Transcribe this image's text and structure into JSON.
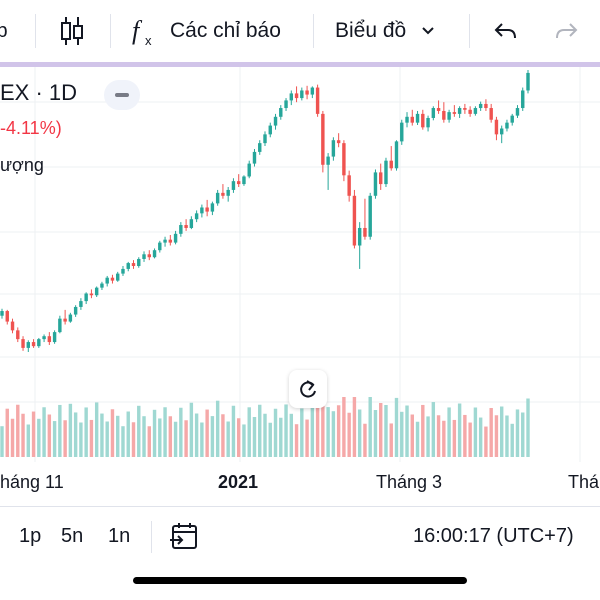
{
  "toolbar": {
    "indicators_label": "Các chỉ báo",
    "chart_type_label": "Biểu đồ",
    "partial_left": "b"
  },
  "legend": {
    "symbol": "EX · 1D",
    "change": "-4.11%)",
    "volume_label": "ượng"
  },
  "x_axis": {
    "labels": [
      "háng 11",
      "2021",
      "Tháng 3",
      "Thá"
    ]
  },
  "bottombar": {
    "range_1d": "1p",
    "range_5d": "5n",
    "range_1y": "1n",
    "clock": "16:00:17 (UTC+7)"
  },
  "colors": {
    "up": "#26a69a",
    "down": "#ef5350",
    "up_volume": "#9fd8d2",
    "down_volume": "#f5a8a8",
    "grid": "#eef0f3"
  },
  "chart_data": {
    "type": "candlestick",
    "title": "",
    "xlabel": "",
    "ylabel": "",
    "candles": [
      [
        1000,
        1012,
        995,
        1008
      ],
      [
        1008,
        1010,
        985,
        990
      ],
      [
        990,
        995,
        970,
        975
      ],
      [
        975,
        980,
        955,
        960
      ],
      [
        960,
        965,
        940,
        945
      ],
      [
        945,
        958,
        938,
        955
      ],
      [
        955,
        960,
        945,
        948
      ],
      [
        948,
        962,
        945,
        960
      ],
      [
        960,
        968,
        955,
        965
      ],
      [
        965,
        972,
        950,
        955
      ],
      [
        955,
        975,
        952,
        972
      ],
      [
        972,
        1000,
        970,
        995
      ],
      [
        995,
        1010,
        985,
        990
      ],
      [
        990,
        1005,
        988,
        1002
      ],
      [
        1002,
        1018,
        998,
        1015
      ],
      [
        1015,
        1030,
        1010,
        1025
      ],
      [
        1025,
        1040,
        1020,
        1038
      ],
      [
        1038,
        1045,
        1030,
        1035
      ],
      [
        1035,
        1050,
        1032,
        1048
      ],
      [
        1048,
        1058,
        1044,
        1055
      ],
      [
        1055,
        1068,
        1050,
        1065
      ],
      [
        1065,
        1070,
        1055,
        1060
      ],
      [
        1060,
        1075,
        1058,
        1072
      ],
      [
        1072,
        1085,
        1068,
        1080
      ],
      [
        1080,
        1092,
        1076,
        1090
      ],
      [
        1090,
        1095,
        1080,
        1085
      ],
      [
        1085,
        1100,
        1082,
        1097
      ],
      [
        1097,
        1110,
        1092,
        1105
      ],
      [
        1105,
        1112,
        1095,
        1100
      ],
      [
        1100,
        1115,
        1098,
        1112
      ],
      [
        1112,
        1128,
        1108,
        1125
      ],
      [
        1125,
        1135,
        1118,
        1130
      ],
      [
        1130,
        1138,
        1120,
        1125
      ],
      [
        1125,
        1145,
        1122,
        1140
      ],
      [
        1140,
        1160,
        1135,
        1155
      ],
      [
        1155,
        1165,
        1145,
        1150
      ],
      [
        1150,
        1170,
        1148,
        1165
      ],
      [
        1165,
        1180,
        1160,
        1175
      ],
      [
        1175,
        1190,
        1168,
        1185
      ],
      [
        1185,
        1198,
        1170,
        1178
      ],
      [
        1178,
        1195,
        1172,
        1192
      ],
      [
        1192,
        1215,
        1188,
        1210
      ],
      [
        1210,
        1225,
        1200,
        1205
      ],
      [
        1205,
        1220,
        1195,
        1215
      ],
      [
        1215,
        1235,
        1210,
        1230
      ],
      [
        1230,
        1242,
        1220,
        1225
      ],
      [
        1225,
        1240,
        1222,
        1238
      ],
      [
        1238,
        1265,
        1235,
        1260
      ],
      [
        1260,
        1285,
        1255,
        1280
      ],
      [
        1280,
        1300,
        1275,
        1295
      ],
      [
        1295,
        1315,
        1290,
        1310
      ],
      [
        1310,
        1330,
        1305,
        1325
      ],
      [
        1325,
        1345,
        1318,
        1340
      ],
      [
        1340,
        1360,
        1335,
        1355
      ],
      [
        1355,
        1372,
        1350,
        1368
      ],
      [
        1368,
        1385,
        1360,
        1380
      ],
      [
        1380,
        1392,
        1365,
        1372
      ],
      [
        1372,
        1390,
        1368,
        1385
      ],
      [
        1385,
        1393,
        1370,
        1378
      ],
      [
        1378,
        1392,
        1372,
        1390
      ],
      [
        1390,
        1395,
        1340,
        1345
      ],
      [
        1345,
        1350,
        1245,
        1258
      ],
      [
        1258,
        1278,
        1215,
        1272
      ],
      [
        1272,
        1305,
        1265,
        1300
      ],
      [
        1300,
        1312,
        1288,
        1295
      ],
      [
        1295,
        1300,
        1230,
        1240
      ],
      [
        1240,
        1248,
        1195,
        1205
      ],
      [
        1205,
        1215,
        1115,
        1120
      ],
      [
        1120,
        1160,
        1080,
        1150
      ],
      [
        1150,
        1200,
        1130,
        1135
      ],
      [
        1135,
        1210,
        1130,
        1205
      ],
      [
        1205,
        1250,
        1200,
        1245
      ],
      [
        1245,
        1260,
        1215,
        1225
      ],
      [
        1225,
        1270,
        1220,
        1265
      ],
      [
        1265,
        1290,
        1248,
        1252
      ],
      [
        1252,
        1300,
        1248,
        1298
      ],
      [
        1298,
        1335,
        1292,
        1330
      ],
      [
        1330,
        1348,
        1322,
        1340
      ],
      [
        1340,
        1352,
        1325,
        1330
      ],
      [
        1330,
        1350,
        1326,
        1345
      ],
      [
        1345,
        1352,
        1318,
        1322
      ],
      [
        1322,
        1342,
        1315,
        1338
      ],
      [
        1338,
        1358,
        1334,
        1355
      ],
      [
        1355,
        1368,
        1345,
        1350
      ],
      [
        1350,
        1365,
        1330,
        1335
      ],
      [
        1335,
        1352,
        1330,
        1348
      ],
      [
        1348,
        1360,
        1340,
        1345
      ],
      [
        1345,
        1358,
        1338,
        1355
      ],
      [
        1355,
        1362,
        1345,
        1352
      ],
      [
        1352,
        1358,
        1340,
        1345
      ],
      [
        1345,
        1358,
        1342,
        1355
      ],
      [
        1355,
        1366,
        1350,
        1362
      ],
      [
        1362,
        1370,
        1350,
        1355
      ],
      [
        1355,
        1362,
        1330,
        1335
      ],
      [
        1335,
        1340,
        1300,
        1310
      ],
      [
        1310,
        1325,
        1295,
        1320
      ],
      [
        1320,
        1335,
        1315,
        1330
      ],
      [
        1330,
        1345,
        1325,
        1342
      ],
      [
        1342,
        1360,
        1338,
        1355
      ],
      [
        1355,
        1390,
        1350,
        1385
      ],
      [
        1385,
        1420,
        1380,
        1415
      ]
    ]
  }
}
